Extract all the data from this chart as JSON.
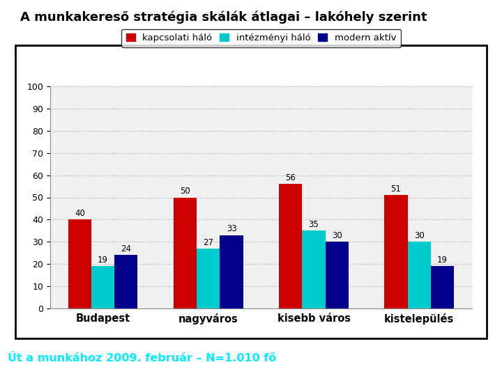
{
  "title": "A munkakereső stratégia skálák átlagai – lakóhely szerint",
  "categories": [
    "Budapest",
    "nagyváros",
    "kisebb város",
    "kistelepülés"
  ],
  "series": [
    {
      "label": "kapcsolati háló",
      "color": "#CC0000",
      "values": [
        40,
        50,
        56,
        51
      ]
    },
    {
      "label": "intézményi háló",
      "color": "#00CCCC",
      "values": [
        19,
        27,
        35,
        30
      ]
    },
    {
      "label": "modern aktív",
      "color": "#00008B",
      "values": [
        24,
        33,
        30,
        19
      ]
    }
  ],
  "ylim": [
    0,
    100
  ],
  "yticks": [
    0,
    10,
    20,
    30,
    40,
    50,
    60,
    70,
    80,
    90,
    100
  ],
  "footer_text": "Út a munkához 2009. február – N=1.010 fő",
  "footer_bg": "#0a2a4a",
  "footer_text_color": "#00EEFF",
  "chart_bg": "#ffffff",
  "plot_area_bg": "#f0f0f0",
  "grid_color": "#aaaaaa",
  "bar_width": 0.22
}
